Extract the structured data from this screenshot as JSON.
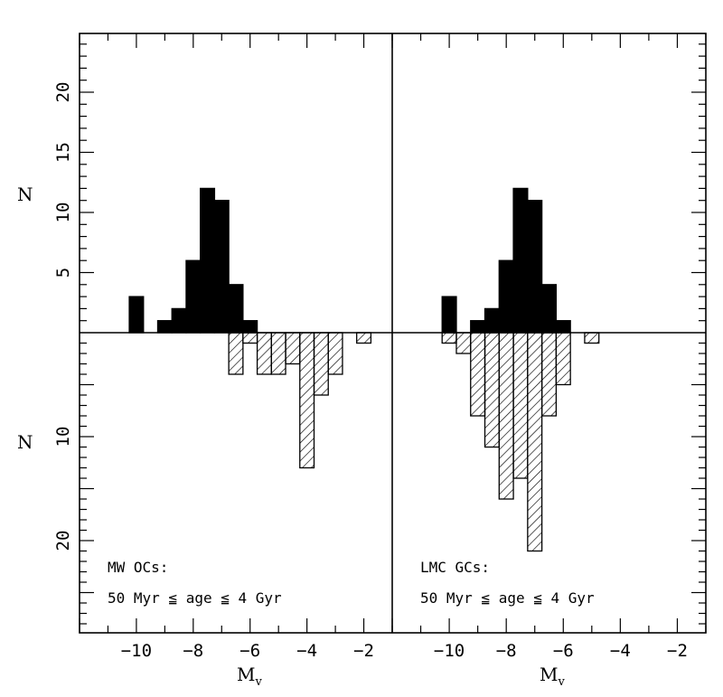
{
  "colors": {
    "ink": "#000000",
    "background": "#ffffff"
  },
  "axes": {
    "xlabel": "M",
    "xlabel_sub": "V",
    "ylabel_top": "N",
    "ylabel_bottom": "N",
    "xlim": [
      -12,
      -1
    ],
    "ylim_top": [
      0,
      25
    ],
    "ylim_bottom": [
      0,
      29
    ],
    "xticks_major": [
      -10,
      -8,
      -6,
      -4,
      -2
    ],
    "xtick_labels": [
      "−10",
      "−8",
      "−6",
      "−4",
      "−2"
    ],
    "yticks_top_labeled": [
      5,
      10,
      15,
      20
    ],
    "ytick_labels_top": [
      "5",
      "10",
      "15",
      "20"
    ],
    "yticks_bottom_labeled": [
      10,
      20
    ],
    "ytick_labels_bottom": [
      "10",
      "20"
    ]
  },
  "chart_data": [
    {
      "type": "bar",
      "panel": "left",
      "bin_width": 0.5,
      "annotation_line1": "MW OCs:",
      "annotation_line2": "50 Myr ≦ age ≦ 4 Gyr",
      "series": [
        {
          "style": "filled",
          "direction": "up",
          "bins": [
            {
              "x": -10.0,
              "n": 3
            },
            {
              "x": -9.5,
              "n": 0
            },
            {
              "x": -9.0,
              "n": 1
            },
            {
              "x": -8.5,
              "n": 2
            },
            {
              "x": -8.0,
              "n": 6
            },
            {
              "x": -7.5,
              "n": 12
            },
            {
              "x": -7.0,
              "n": 11
            },
            {
              "x": -6.5,
              "n": 4
            },
            {
              "x": -6.0,
              "n": 1
            }
          ]
        },
        {
          "style": "hatched",
          "direction": "down",
          "bins": [
            {
              "x": -6.5,
              "n": 4
            },
            {
              "x": -6.0,
              "n": 1
            },
            {
              "x": -5.5,
              "n": 4
            },
            {
              "x": -5.0,
              "n": 4
            },
            {
              "x": -4.5,
              "n": 3
            },
            {
              "x": -4.0,
              "n": 13
            },
            {
              "x": -3.5,
              "n": 6
            },
            {
              "x": -3.0,
              "n": 4
            },
            {
              "x": -2.0,
              "n": 1
            }
          ]
        }
      ]
    },
    {
      "type": "bar",
      "panel": "right",
      "bin_width": 0.5,
      "annotation_line1": "LMC GCs:",
      "annotation_line2": "50 Myr ≦ age ≦ 4 Gyr",
      "series": [
        {
          "style": "filled",
          "direction": "up",
          "bins": [
            {
              "x": -10.0,
              "n": 3
            },
            {
              "x": -9.5,
              "n": 0
            },
            {
              "x": -9.0,
              "n": 1
            },
            {
              "x": -8.5,
              "n": 2
            },
            {
              "x": -8.0,
              "n": 6
            },
            {
              "x": -7.5,
              "n": 12
            },
            {
              "x": -7.0,
              "n": 11
            },
            {
              "x": -6.5,
              "n": 4
            },
            {
              "x": -6.0,
              "n": 1
            }
          ]
        },
        {
          "style": "hatched",
          "direction": "down",
          "bins": [
            {
              "x": -10.0,
              "n": 1
            },
            {
              "x": -9.5,
              "n": 2
            },
            {
              "x": -9.0,
              "n": 8
            },
            {
              "x": -8.5,
              "n": 11
            },
            {
              "x": -8.0,
              "n": 16
            },
            {
              "x": -7.5,
              "n": 14
            },
            {
              "x": -7.0,
              "n": 21
            },
            {
              "x": -6.5,
              "n": 8
            },
            {
              "x": -6.0,
              "n": 5
            },
            {
              "x": -5.0,
              "n": 1
            }
          ]
        }
      ]
    }
  ]
}
